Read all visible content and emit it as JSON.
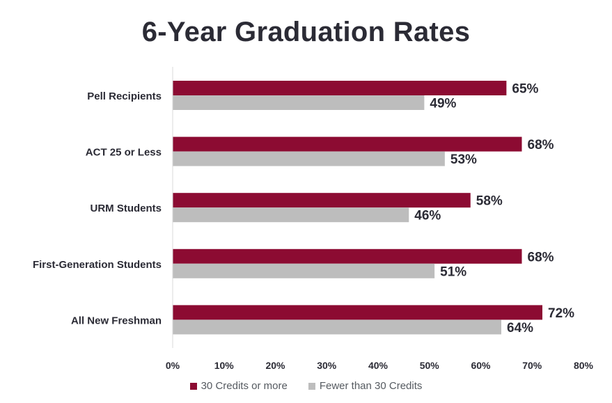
{
  "chart_data": {
    "type": "bar",
    "orientation": "horizontal",
    "title": "6-Year Graduation Rates",
    "categories": [
      "Pell Recipients",
      "ACT 25 or Less",
      "URM Students",
      "First-Generation Students",
      "All New Freshman"
    ],
    "series": [
      {
        "name": "30 Credits or more",
        "color": "#8c0b32",
        "values": [
          65,
          68,
          58,
          68,
          72
        ],
        "labels": [
          "65%",
          "68%",
          "58%",
          "68%",
          "72%"
        ]
      },
      {
        "name": "Fewer than 30 Credits",
        "color": "#bdbdbd",
        "values": [
          49,
          53,
          46,
          51,
          64
        ],
        "labels": [
          "49%",
          "53%",
          "46%",
          "51%",
          "64%"
        ]
      }
    ],
    "xlim": [
      0,
      80
    ],
    "xticks": [
      0,
      10,
      20,
      30,
      40,
      50,
      60,
      70,
      80
    ],
    "xtick_labels": [
      "0%",
      "10%",
      "20%",
      "30%",
      "40%",
      "50%",
      "60%",
      "70%",
      "80%"
    ],
    "grid": false,
    "legend_position": "bottom"
  }
}
